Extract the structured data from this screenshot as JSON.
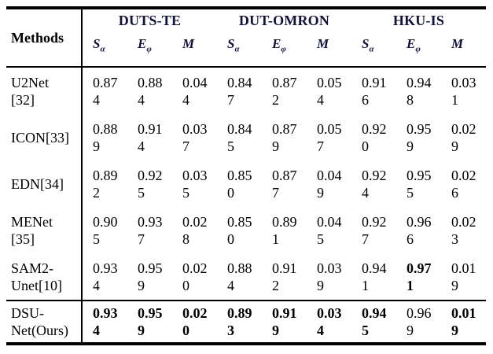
{
  "table": {
    "methods_label": "Methods",
    "colors": {
      "header_text": "#12123a",
      "body_text": "#000000",
      "rules": "#000000",
      "background": "#ffffff"
    },
    "groups": [
      {
        "name": "DUTS-TE"
      },
      {
        "name": "DUT-OMRON"
      },
      {
        "name": "HKU-IS"
      }
    ],
    "metrics": [
      {
        "base": "S",
        "sub": "α"
      },
      {
        "base": "E",
        "sub": "φ"
      },
      {
        "base": "M",
        "sub": ""
      }
    ],
    "rows": [
      {
        "name": "U2Net [32]",
        "lines": [
          "U2Net",
          "[32]"
        ],
        "values": [
          "0.874",
          "0.884",
          "0.044",
          "0.847",
          "0.872",
          "0.054",
          "0.916",
          "0.948",
          "0.031"
        ],
        "bold": [
          false,
          false,
          false,
          false,
          false,
          false,
          false,
          false,
          false
        ]
      },
      {
        "name": "ICON[33]",
        "lines": [
          "ICON[33]"
        ],
        "values": [
          "0.889",
          "0.914",
          "0.037",
          "0.845",
          "0.879",
          "0.057",
          "0.920",
          "0.959",
          "0.029"
        ],
        "bold": [
          false,
          false,
          false,
          false,
          false,
          false,
          false,
          false,
          false
        ]
      },
      {
        "name": "EDN[34]",
        "lines": [
          "EDN[34]"
        ],
        "values": [
          "0.892",
          "0.925",
          "0.035",
          "0.850",
          "0.877",
          "0.049",
          "0.924",
          "0.955",
          "0.026"
        ],
        "bold": [
          false,
          false,
          false,
          false,
          false,
          false,
          false,
          false,
          false
        ]
      },
      {
        "name": "MENet [35]",
        "lines": [
          "MENet",
          "[35]"
        ],
        "values": [
          "0.905",
          "0.937",
          "0.028",
          "0.850",
          "0.891",
          "0.045",
          "0.927",
          "0.966",
          "0.023"
        ],
        "bold": [
          false,
          false,
          false,
          false,
          false,
          false,
          false,
          false,
          false
        ]
      },
      {
        "name": "SAM2-Unet[10]",
        "lines": [
          "SAM2-",
          "Unet[10]"
        ],
        "values": [
          "0.934",
          "0.959",
          "0.020",
          "0.884",
          "0.912",
          "0.039",
          "0.941",
          "0.971",
          "0.019"
        ],
        "bold": [
          false,
          false,
          false,
          false,
          false,
          false,
          false,
          true,
          false
        ]
      },
      {
        "name": "DSU-Net(Ours)",
        "lines": [
          "DSU-",
          "Net(Ours)"
        ],
        "values": [
          "0.934",
          "0.959",
          "0.020",
          "0.893",
          "0.919",
          "0.034",
          "0.945",
          "0.969",
          "0.019"
        ],
        "bold": [
          true,
          true,
          true,
          true,
          true,
          true,
          true,
          false,
          true
        ],
        "separator_above": true
      }
    ]
  }
}
